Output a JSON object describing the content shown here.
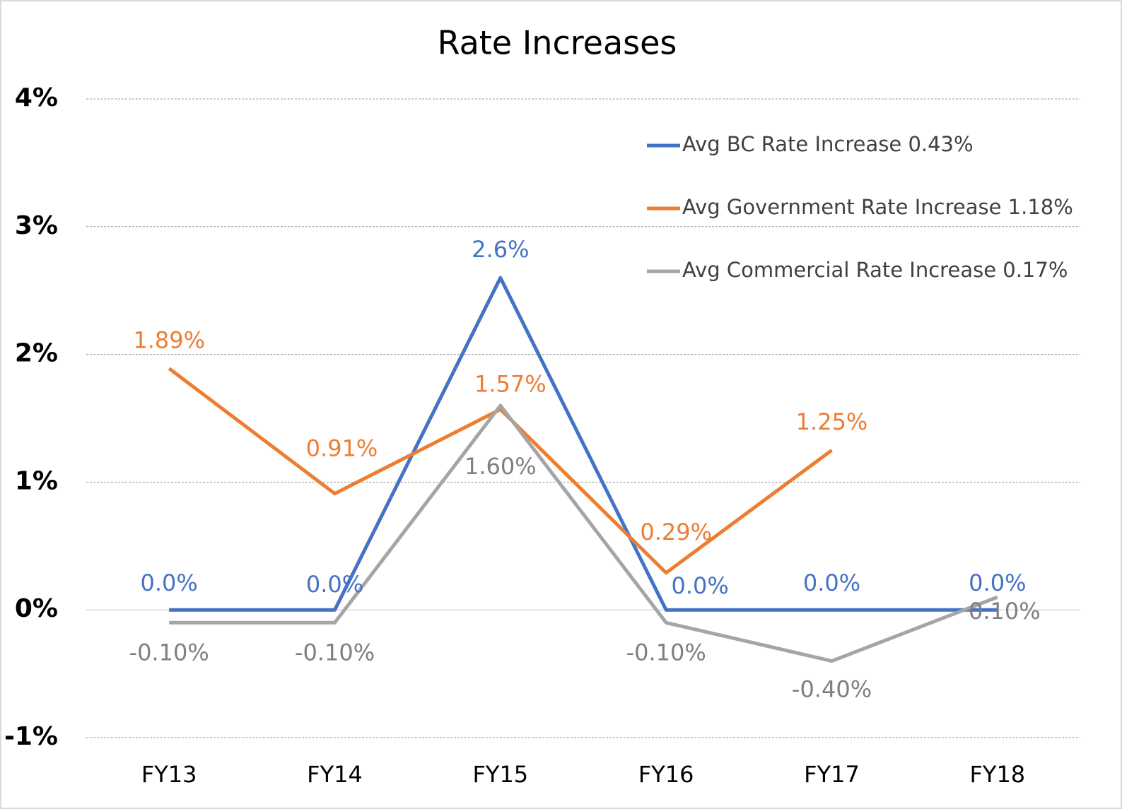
{
  "chart_data": {
    "type": "line",
    "title": "Rate Increases",
    "categories": [
      "FY13",
      "FY14",
      "FY15",
      "FY16",
      "FY17",
      "FY18"
    ],
    "series": [
      {
        "name": "Avg BC Rate Increase 0.43%",
        "color": "#4472c4",
        "values": [
          0,
          0,
          2.6,
          0,
          0,
          0
        ],
        "value_labels": [
          "0.0%",
          "0.0%",
          "2.6%",
          "0.0%",
          "0.0%",
          "0.0%"
        ]
      },
      {
        "name": "Avg Government Rate Increase 1.18%",
        "color": "#ed7d31",
        "values": [
          1.89,
          0.91,
          1.57,
          0.29,
          1.25,
          null
        ],
        "value_labels": [
          "1.89%",
          "0.91%",
          "1.57%",
          "0.29%",
          "1.25%",
          null
        ]
      },
      {
        "name": "Avg Commercial Rate Increase 0.17%",
        "color": "#a5a5a5",
        "values": [
          -0.1,
          -0.1,
          1.6,
          -0.1,
          -0.4,
          0.1
        ],
        "value_labels": [
          "-0.10%",
          "-0.10%",
          "1.60%",
          "-0.10%",
          "-0.40%",
          "0.10%"
        ]
      }
    ],
    "ylim": [
      -1,
      4
    ],
    "yticks": [
      {
        "value": -1,
        "label": "-1%"
      },
      {
        "value": 0,
        "label": "0%"
      },
      {
        "value": 1,
        "label": "1%"
      },
      {
        "value": 2,
        "label": "2%"
      },
      {
        "value": 3,
        "label": "3%"
      },
      {
        "value": 4,
        "label": "4%"
      }
    ],
    "grid": true,
    "legend": "top-right"
  }
}
